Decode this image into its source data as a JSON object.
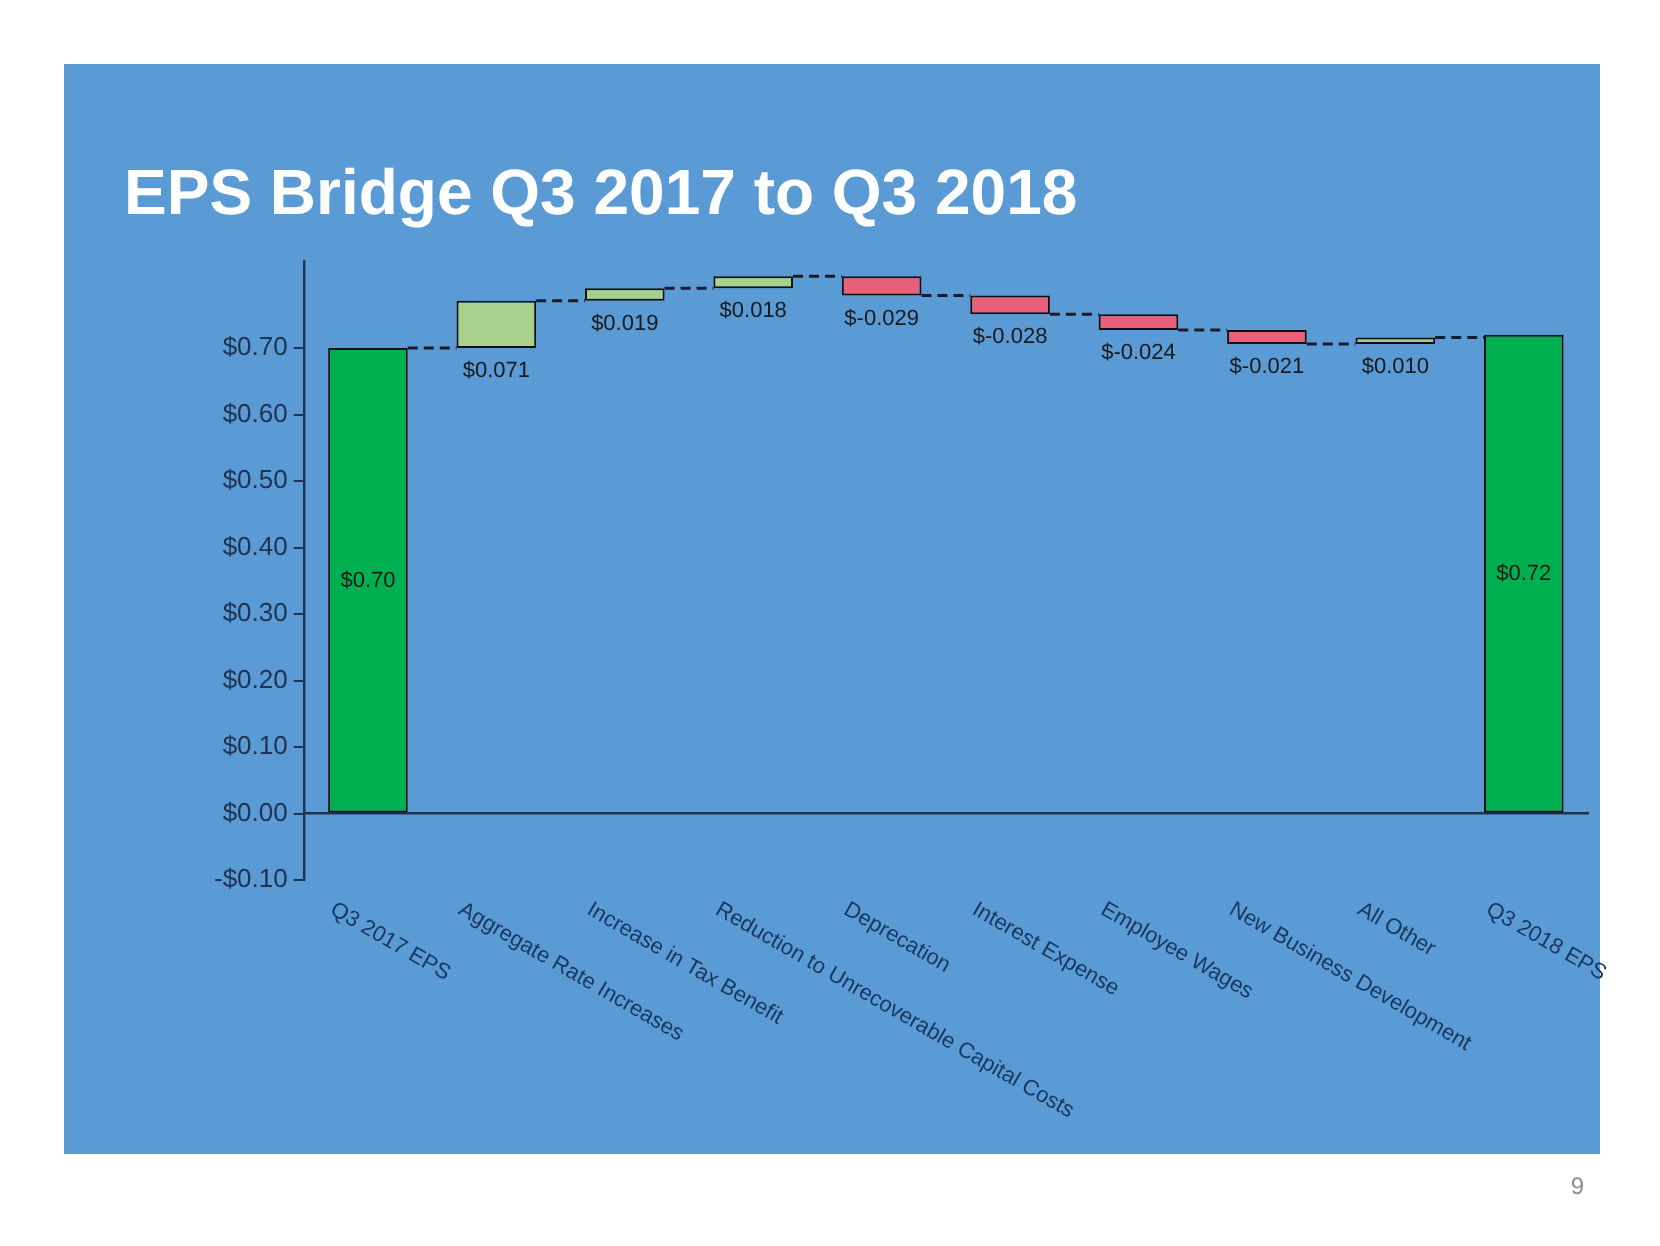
{
  "chart_data": {
    "type": "bar",
    "title": "EPS Bridge Q3 2017 to Q3 2018",
    "categories": [
      "Q3 2017 EPS",
      "Aggregate Rate Increases",
      "Increase in Tax Benefit",
      "Reduction to Unrecoverable Capital Costs",
      "Deprecation",
      "Interest Expense",
      "Employee Wages",
      "New Business Development",
      "All Other",
      "Q3 2018 EPS"
    ],
    "values": [
      0.7,
      0.071,
      0.019,
      0.018,
      -0.029,
      -0.028,
      -0.024,
      -0.021,
      0.01,
      0.72
    ],
    "base": [
      0,
      0.7,
      0.771,
      0.79,
      0.808,
      0.779,
      0.751,
      0.727,
      0.706,
      0
    ],
    "colors": [
      "#00b050",
      "#a9d18e",
      "#a9d18e",
      "#a9d18e",
      "#e8607a",
      "#e8607a",
      "#e8607a",
      "#e8607a",
      "#a9d18e",
      "#00b050"
    ],
    "value_labels": [
      "$0.70",
      "$0.071",
      "$0.019",
      "$0.018",
      "$-0.029",
      "$-0.028",
      "$-0.024",
      "$-0.021",
      "$0.010",
      "$0.72"
    ],
    "ylim": [
      -0.1,
      0.83
    ],
    "yticks": [
      {
        "value": -0.1,
        "label": "-$0.10"
      },
      {
        "value": 0,
        "label": "$0.00"
      },
      {
        "value": 0.1,
        "label": "$0.10"
      },
      {
        "value": 0.2,
        "label": "$0.20"
      },
      {
        "value": 0.3,
        "label": "$0.30"
      },
      {
        "value": 0.4,
        "label": "$0.40"
      },
      {
        "value": 0.5,
        "label": "$0.50"
      },
      {
        "value": 0.6,
        "label": "$0.60"
      },
      {
        "value": 0.7,
        "label": "$0.70"
      }
    ],
    "annotations": [
      "9"
    ]
  }
}
